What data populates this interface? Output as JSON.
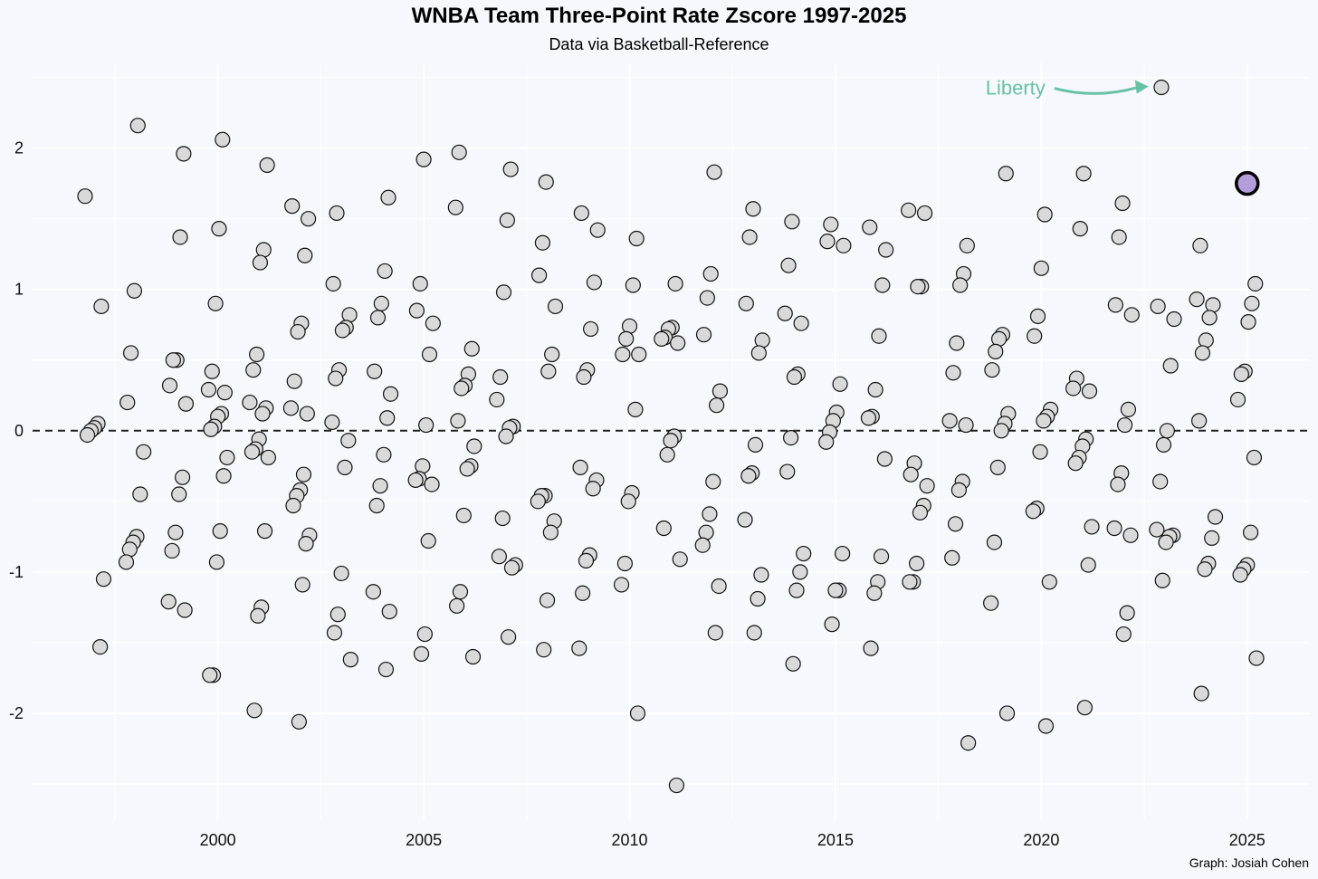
{
  "chart_data": {
    "type": "scatter",
    "title": "WNBA Team Three-Point Rate Zscore 1997-2025",
    "subtitle": "Data via Basketball-Reference",
    "caption": "Graph: Josiah Cohen",
    "xlabel": "",
    "ylabel": "",
    "xlim": [
      1995.5,
      2026.5
    ],
    "ylim": [
      -2.75,
      2.6
    ],
    "x_ticks": [
      2000,
      2005,
      2010,
      2015,
      2020,
      2025
    ],
    "y_ticks": [
      -2,
      -1,
      0,
      1,
      2
    ],
    "x_tick_labels": [
      "2000",
      "2005",
      "2010",
      "2015",
      "2020",
      "2025"
    ],
    "y_tick_labels": [
      "-2",
      "-1",
      "0",
      "1",
      "2"
    ],
    "reference_line": {
      "y": 0,
      "style": "dashed"
    },
    "grid": true,
    "colors": {
      "point_fill": "#d9d9d9",
      "point_stroke": "#111111",
      "highlight_fill": "#b39ddb",
      "annotation": "#66c2a5",
      "background": "#f7f8fd"
    },
    "highlight": {
      "x": 2025,
      "y": 1.75
    },
    "annotation": {
      "text": "Liberty",
      "x": 2023,
      "y": 2.43
    },
    "points": [
      [
        1997,
        1.66
      ],
      [
        1997,
        0.88
      ],
      [
        1997,
        0.05
      ],
      [
        1997,
        0.02
      ],
      [
        1997,
        0.0
      ],
      [
        1997,
        -0.03
      ],
      [
        1997,
        -1.05
      ],
      [
        1997,
        -1.53
      ],
      [
        1998,
        2.16
      ],
      [
        1998,
        0.99
      ],
      [
        1998,
        0.55
      ],
      [
        1998,
        0.2
      ],
      [
        1998,
        -0.15
      ],
      [
        1998,
        -0.45
      ],
      [
        1998,
        -0.75
      ],
      [
        1998,
        -0.79
      ],
      [
        1998,
        -0.84
      ],
      [
        1998,
        -0.93
      ],
      [
        1999,
        1.96
      ],
      [
        1999,
        1.37
      ],
      [
        1999,
        0.5
      ],
      [
        1999,
        0.5
      ],
      [
        1999,
        0.32
      ],
      [
        1999,
        0.19
      ],
      [
        1999,
        -0.33
      ],
      [
        1999,
        -0.45
      ],
      [
        1999,
        -0.72
      ],
      [
        1999,
        -0.85
      ],
      [
        1999,
        -1.21
      ],
      [
        1999,
        -1.27
      ],
      [
        2000,
        2.06
      ],
      [
        2000,
        1.43
      ],
      [
        2000,
        0.9
      ],
      [
        2000,
        0.42
      ],
      [
        2000,
        0.29
      ],
      [
        2000,
        0.27
      ],
      [
        2000,
        0.12
      ],
      [
        2000,
        0.1
      ],
      [
        2000,
        0.03
      ],
      [
        2000,
        0.01
      ],
      [
        2000,
        -0.19
      ],
      [
        2000,
        -0.32
      ],
      [
        2000,
        -0.71
      ],
      [
        2000,
        -0.93
      ],
      [
        2000,
        -1.73
      ],
      [
        2000,
        -1.73
      ],
      [
        2001,
        1.88
      ],
      [
        2001,
        1.28
      ],
      [
        2001,
        1.19
      ],
      [
        2001,
        0.54
      ],
      [
        2001,
        0.43
      ],
      [
        2001,
        0.2
      ],
      [
        2001,
        0.16
      ],
      [
        2001,
        0.12
      ],
      [
        2001,
        -0.06
      ],
      [
        2001,
        -0.13
      ],
      [
        2001,
        -0.15
      ],
      [
        2001,
        -0.19
      ],
      [
        2001,
        -0.71
      ],
      [
        2001,
        -1.25
      ],
      [
        2001,
        -1.31
      ],
      [
        2001,
        -1.98
      ],
      [
        2002,
        1.59
      ],
      [
        2002,
        1.5
      ],
      [
        2002,
        1.24
      ],
      [
        2002,
        0.76
      ],
      [
        2002,
        0.7
      ],
      [
        2002,
        0.35
      ],
      [
        2002,
        0.16
      ],
      [
        2002,
        0.12
      ],
      [
        2002,
        -0.31
      ],
      [
        2002,
        -0.42
      ],
      [
        2002,
        -0.46
      ],
      [
        2002,
        -0.53
      ],
      [
        2002,
        -0.74
      ],
      [
        2002,
        -0.8
      ],
      [
        2002,
        -1.09
      ],
      [
        2002,
        -2.06
      ],
      [
        2003,
        1.54
      ],
      [
        2003,
        1.04
      ],
      [
        2003,
        0.82
      ],
      [
        2003,
        0.73
      ],
      [
        2003,
        0.71
      ],
      [
        2003,
        0.43
      ],
      [
        2003,
        0.37
      ],
      [
        2003,
        0.06
      ],
      [
        2003,
        -0.07
      ],
      [
        2003,
        -0.26
      ],
      [
        2003,
        -1.01
      ],
      [
        2003,
        -1.3
      ],
      [
        2003,
        -1.43
      ],
      [
        2003,
        -1.62
      ],
      [
        2004,
        1.65
      ],
      [
        2004,
        1.13
      ],
      [
        2004,
        0.9
      ],
      [
        2004,
        0.8
      ],
      [
        2004,
        0.42
      ],
      [
        2004,
        0.26
      ],
      [
        2004,
        0.09
      ],
      [
        2004,
        -0.17
      ],
      [
        2004,
        -0.39
      ],
      [
        2004,
        -0.53
      ],
      [
        2004,
        -1.14
      ],
      [
        2004,
        -1.28
      ],
      [
        2004,
        -1.69
      ],
      [
        2005,
        1.92
      ],
      [
        2005,
        1.04
      ],
      [
        2005,
        0.85
      ],
      [
        2005,
        0.76
      ],
      [
        2005,
        0.54
      ],
      [
        2005,
        0.04
      ],
      [
        2005,
        -0.25
      ],
      [
        2005,
        -0.34
      ],
      [
        2005,
        -0.35
      ],
      [
        2005,
        -0.38
      ],
      [
        2005,
        -0.78
      ],
      [
        2005,
        -1.44
      ],
      [
        2005,
        -1.58
      ],
      [
        2006,
        1.97
      ],
      [
        2006,
        1.58
      ],
      [
        2006,
        0.58
      ],
      [
        2006,
        0.4
      ],
      [
        2006,
        0.32
      ],
      [
        2006,
        0.3
      ],
      [
        2006,
        0.07
      ],
      [
        2006,
        -0.11
      ],
      [
        2006,
        -0.25
      ],
      [
        2006,
        -0.27
      ],
      [
        2006,
        -0.6
      ],
      [
        2006,
        -1.14
      ],
      [
        2006,
        -1.24
      ],
      [
        2006,
        -1.6
      ],
      [
        2007,
        1.85
      ],
      [
        2007,
        1.49
      ],
      [
        2007,
        0.98
      ],
      [
        2007,
        0.38
      ],
      [
        2007,
        0.22
      ],
      [
        2007,
        0.03
      ],
      [
        2007,
        0.02
      ],
      [
        2007,
        -0.04
      ],
      [
        2007,
        -0.62
      ],
      [
        2007,
        -0.89
      ],
      [
        2007,
        -0.95
      ],
      [
        2007,
        -0.97
      ],
      [
        2007,
        -1.46
      ],
      [
        2008,
        1.76
      ],
      [
        2008,
        1.33
      ],
      [
        2008,
        1.1
      ],
      [
        2008,
        0.88
      ],
      [
        2008,
        0.54
      ],
      [
        2008,
        0.42
      ],
      [
        2008,
        -0.46
      ],
      [
        2008,
        -0.46
      ],
      [
        2008,
        -0.5
      ],
      [
        2008,
        -0.64
      ],
      [
        2008,
        -0.72
      ],
      [
        2008,
        -1.2
      ],
      [
        2008,
        -1.55
      ],
      [
        2009,
        1.54
      ],
      [
        2009,
        1.42
      ],
      [
        2009,
        1.05
      ],
      [
        2009,
        0.72
      ],
      [
        2009,
        0.43
      ],
      [
        2009,
        0.38
      ],
      [
        2009,
        -0.26
      ],
      [
        2009,
        -0.35
      ],
      [
        2009,
        -0.41
      ],
      [
        2009,
        -0.88
      ],
      [
        2009,
        -0.92
      ],
      [
        2009,
        -1.15
      ],
      [
        2009,
        -1.54
      ],
      [
        2010,
        1.36
      ],
      [
        2010,
        1.03
      ],
      [
        2010,
        0.74
      ],
      [
        2010,
        0.65
      ],
      [
        2010,
        0.54
      ],
      [
        2010,
        0.54
      ],
      [
        2010,
        0.15
      ],
      [
        2010,
        -0.44
      ],
      [
        2010,
        -0.5
      ],
      [
        2010,
        -0.94
      ],
      [
        2010,
        -1.09
      ],
      [
        2010,
        -2.0
      ],
      [
        2011,
        1.04
      ],
      [
        2011,
        0.73
      ],
      [
        2011,
        0.72
      ],
      [
        2011,
        0.66
      ],
      [
        2011,
        0.65
      ],
      [
        2011,
        0.62
      ],
      [
        2011,
        -0.04
      ],
      [
        2011,
        -0.07
      ],
      [
        2011,
        -0.17
      ],
      [
        2011,
        -0.69
      ],
      [
        2011,
        -0.91
      ],
      [
        2011,
        -2.51
      ],
      [
        2012,
        1.83
      ],
      [
        2012,
        1.11
      ],
      [
        2012,
        0.94
      ],
      [
        2012,
        0.68
      ],
      [
        2012,
        0.28
      ],
      [
        2012,
        0.18
      ],
      [
        2012,
        -0.36
      ],
      [
        2012,
        -0.59
      ],
      [
        2012,
        -0.72
      ],
      [
        2012,
        -0.81
      ],
      [
        2012,
        -1.1
      ],
      [
        2012,
        -1.43
      ],
      [
        2013,
        1.57
      ],
      [
        2013,
        1.37
      ],
      [
        2013,
        0.9
      ],
      [
        2013,
        0.64
      ],
      [
        2013,
        0.55
      ],
      [
        2013,
        -0.1
      ],
      [
        2013,
        -0.3
      ],
      [
        2013,
        -0.32
      ],
      [
        2013,
        -0.63
      ],
      [
        2013,
        -1.02
      ],
      [
        2013,
        -1.19
      ],
      [
        2013,
        -1.43
      ],
      [
        2014,
        1.48
      ],
      [
        2014,
        1.17
      ],
      [
        2014,
        0.83
      ],
      [
        2014,
        0.76
      ],
      [
        2014,
        0.4
      ],
      [
        2014,
        0.38
      ],
      [
        2014,
        -0.05
      ],
      [
        2014,
        -0.29
      ],
      [
        2014,
        -0.87
      ],
      [
        2014,
        -1.0
      ],
      [
        2014,
        -1.13
      ],
      [
        2014,
        -1.65
      ],
      [
        2015,
        1.46
      ],
      [
        2015,
        1.34
      ],
      [
        2015,
        1.31
      ],
      [
        2015,
        0.33
      ],
      [
        2015,
        0.13
      ],
      [
        2015,
        0.07
      ],
      [
        2015,
        -0.01
      ],
      [
        2015,
        -0.08
      ],
      [
        2015,
        -0.87
      ],
      [
        2015,
        -1.13
      ],
      [
        2015,
        -1.13
      ],
      [
        2015,
        -1.37
      ],
      [
        2016,
        1.44
      ],
      [
        2016,
        1.28
      ],
      [
        2016,
        1.03
      ],
      [
        2016,
        0.67
      ],
      [
        2016,
        0.29
      ],
      [
        2016,
        0.1
      ],
      [
        2016,
        0.09
      ],
      [
        2016,
        -0.2
      ],
      [
        2016,
        -0.89
      ],
      [
        2016,
        -1.07
      ],
      [
        2016,
        -1.15
      ],
      [
        2016,
        -1.54
      ],
      [
        2017,
        1.56
      ],
      [
        2017,
        1.54
      ],
      [
        2017,
        1.02
      ],
      [
        2017,
        1.02
      ],
      [
        2017,
        -0.23
      ],
      [
        2017,
        -0.31
      ],
      [
        2017,
        -0.39
      ],
      [
        2017,
        -0.53
      ],
      [
        2017,
        -0.58
      ],
      [
        2017,
        -0.94
      ],
      [
        2017,
        -1.07
      ],
      [
        2017,
        -1.07
      ],
      [
        2018,
        1.31
      ],
      [
        2018,
        1.11
      ],
      [
        2018,
        1.03
      ],
      [
        2018,
        0.62
      ],
      [
        2018,
        0.41
      ],
      [
        2018,
        0.07
      ],
      [
        2018,
        0.04
      ],
      [
        2018,
        -0.36
      ],
      [
        2018,
        -0.42
      ],
      [
        2018,
        -0.66
      ],
      [
        2018,
        -0.9
      ],
      [
        2018,
        -2.21
      ],
      [
        2019,
        1.82
      ],
      [
        2019,
        0.68
      ],
      [
        2019,
        0.65
      ],
      [
        2019,
        0.56
      ],
      [
        2019,
        0.43
      ],
      [
        2019,
        0.12
      ],
      [
        2019,
        0.05
      ],
      [
        2019,
        -0.0
      ],
      [
        2019,
        -0.26
      ],
      [
        2019,
        -0.79
      ],
      [
        2019,
        -1.22
      ],
      [
        2019,
        -2.0
      ],
      [
        2020,
        1.53
      ],
      [
        2020,
        1.15
      ],
      [
        2020,
        0.81
      ],
      [
        2020,
        0.67
      ],
      [
        2020,
        0.15
      ],
      [
        2020,
        0.1
      ],
      [
        2020,
        0.07
      ],
      [
        2020,
        -0.15
      ],
      [
        2020,
        -0.55
      ],
      [
        2020,
        -0.57
      ],
      [
        2020,
        -1.07
      ],
      [
        2020,
        -2.09
      ],
      [
        2021,
        1.82
      ],
      [
        2021,
        1.43
      ],
      [
        2021,
        0.37
      ],
      [
        2021,
        0.3
      ],
      [
        2021,
        0.28
      ],
      [
        2021,
        -0.06
      ],
      [
        2021,
        -0.11
      ],
      [
        2021,
        -0.19
      ],
      [
        2021,
        -0.23
      ],
      [
        2021,
        -0.68
      ],
      [
        2021,
        -0.95
      ],
      [
        2021,
        -1.96
      ],
      [
        2022,
        1.61
      ],
      [
        2022,
        1.37
      ],
      [
        2022,
        0.89
      ],
      [
        2022,
        0.82
      ],
      [
        2022,
        0.15
      ],
      [
        2022,
        0.04
      ],
      [
        2022,
        -0.3
      ],
      [
        2022,
        -0.38
      ],
      [
        2022,
        -0.69
      ],
      [
        2022,
        -0.74
      ],
      [
        2022,
        -1.29
      ],
      [
        2022,
        -1.44
      ],
      [
        2023,
        2.43
      ],
      [
        2023,
        0.88
      ],
      [
        2023,
        0.79
      ],
      [
        2023,
        0.46
      ],
      [
        2023,
        0.0
      ],
      [
        2023,
        -0.1
      ],
      [
        2023,
        -0.36
      ],
      [
        2023,
        -0.7
      ],
      [
        2023,
        -0.74
      ],
      [
        2023,
        -0.75
      ],
      [
        2023,
        -0.79
      ],
      [
        2023,
        -1.06
      ],
      [
        2024,
        1.31
      ],
      [
        2024,
        0.93
      ],
      [
        2024,
        0.89
      ],
      [
        2024,
        0.8
      ],
      [
        2024,
        0.64
      ],
      [
        2024,
        0.55
      ],
      [
        2024,
        0.07
      ],
      [
        2024,
        -0.61
      ],
      [
        2024,
        -0.76
      ],
      [
        2024,
        -0.94
      ],
      [
        2024,
        -0.98
      ],
      [
        2024,
        -1.86
      ],
      [
        2025,
        1.75
      ],
      [
        2025,
        1.04
      ],
      [
        2025,
        0.9
      ],
      [
        2025,
        0.77
      ],
      [
        2025,
        0.42
      ],
      [
        2025,
        0.4
      ],
      [
        2025,
        0.22
      ],
      [
        2025,
        -0.19
      ],
      [
        2025,
        -0.72
      ],
      [
        2025,
        -0.95
      ],
      [
        2025,
        -0.98
      ],
      [
        2025,
        -1.02
      ],
      [
        2025,
        -1.61
      ]
    ]
  }
}
